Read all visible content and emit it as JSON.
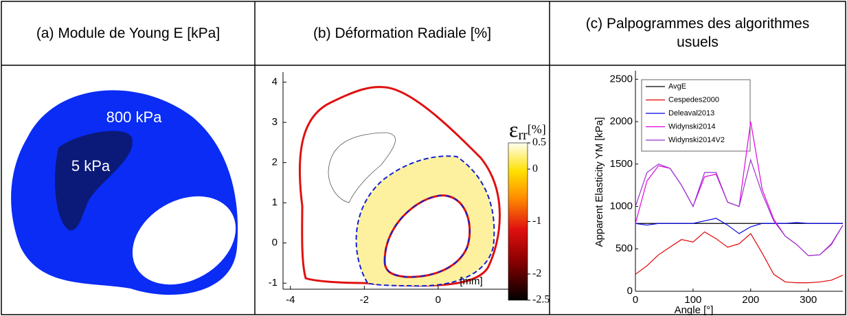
{
  "table": {
    "headers": [
      "(a) Module de Young E [kPa]",
      "(b) Déformation Radiale [%]",
      "(c) Palpogrammes des algorithmes usuels"
    ]
  },
  "panel_a": {
    "labels": [
      "800 kPa",
      "5 kPa"
    ]
  },
  "panel_b": {
    "xlim": [
      -4.2,
      1.9
    ],
    "ylim": [
      -1.15,
      4.25
    ],
    "xticks": [
      -4,
      -2,
      0
    ],
    "yticks": [
      -1,
      0,
      1,
      2,
      3,
      4
    ],
    "unit_label": "[mm]",
    "colorbar": {
      "symbol": "ε",
      "subscript": "rr",
      "unit": "[%]",
      "clim": [
        -2.5,
        0.5
      ],
      "ticks": [
        0.5,
        0,
        -1,
        -2,
        -2.5
      ]
    }
  },
  "chart_data": {
    "type": "line",
    "xlabel": "Angle [°]",
    "ylabel": "Apparent Elasticity YM [kPa]",
    "xlim": [
      0,
      360
    ],
    "ylim": [
      0,
      2600
    ],
    "xticks": [
      0,
      100,
      200,
      300
    ],
    "yticks": [
      0,
      500,
      1000,
      1500,
      2000,
      2500
    ],
    "x": [
      0,
      20,
      40,
      60,
      80,
      100,
      120,
      140,
      160,
      180,
      200,
      220,
      240,
      260,
      280,
      300,
      320,
      340,
      360
    ],
    "series": [
      {
        "name": "AvgE",
        "color": "#000000",
        "values": [
          800,
          800,
          800,
          800,
          800,
          800,
          800,
          800,
          800,
          800,
          800,
          800,
          800,
          800,
          800,
          800,
          800,
          800,
          800
        ]
      },
      {
        "name": "Cespedes2000",
        "color": "#e00000",
        "values": [
          200,
          300,
          430,
          520,
          610,
          580,
          700,
          620,
          520,
          560,
          680,
          450,
          200,
          110,
          100,
          100,
          110,
          130,
          190
        ]
      },
      {
        "name": "Deleaval2013",
        "color": "#0000e0",
        "values": [
          800,
          780,
          800,
          800,
          800,
          800,
          830,
          860,
          780,
          680,
          760,
          800,
          800,
          800,
          810,
          800,
          800,
          800,
          800
        ]
      },
      {
        "name": "Widynski2014",
        "color": "#e000e0",
        "values": [
          800,
          1300,
          1480,
          1450,
          1250,
          1000,
          1350,
          1380,
          1050,
          1000,
          2000,
          1200,
          850,
          650,
          550,
          420,
          430,
          550,
          780
        ]
      },
      {
        "name": "Widynski2014V2",
        "color": "#9933cc",
        "values": [
          1000,
          1400,
          1500,
          1450,
          1250,
          1000,
          1400,
          1400,
          1050,
          1000,
          1550,
          1150,
          830,
          650,
          550,
          420,
          430,
          560,
          780
        ]
      }
    ]
  }
}
